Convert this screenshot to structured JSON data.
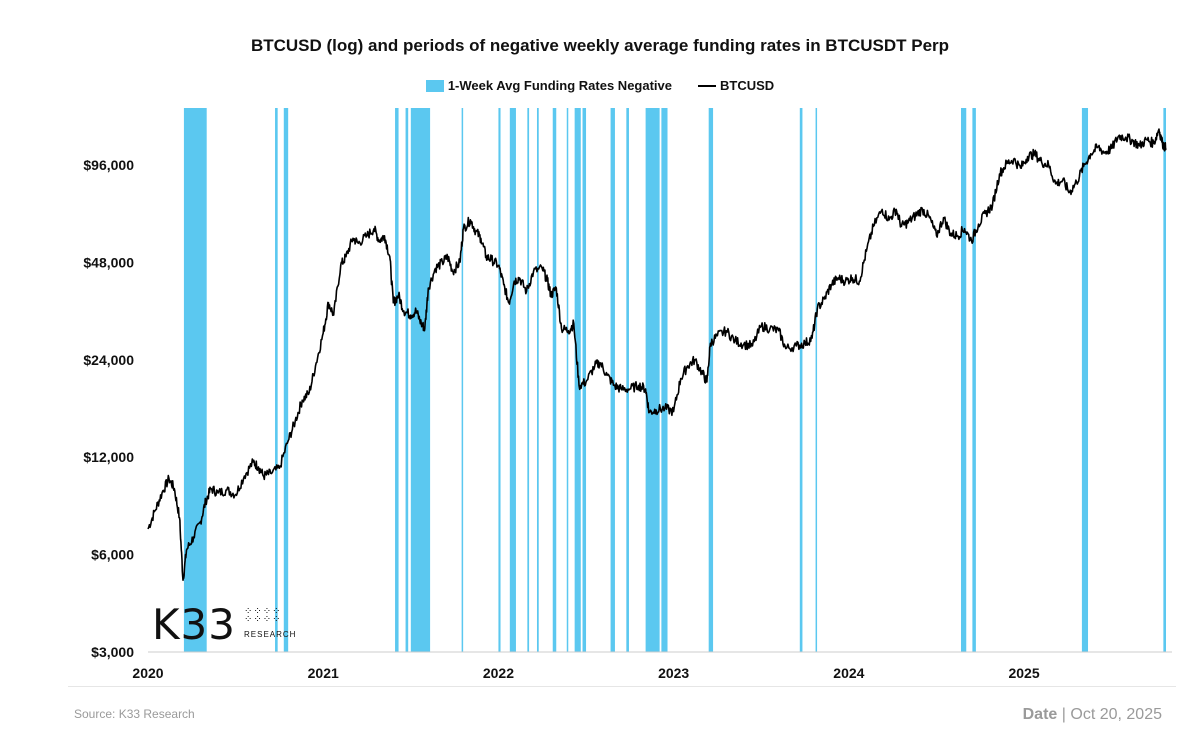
{
  "chart_data": {
    "type": "line",
    "title": "BTCUSD (log) and periods of negative weekly average funding rates in BTCUSDT Perp",
    "legend": [
      "1-Week Avg Funding Rates Negative",
      "BTCUSD"
    ],
    "legend_position": "top-center",
    "yscale": "log",
    "ylim": [
      3000,
      140000
    ],
    "yticks": [
      3000,
      6000,
      12000,
      24000,
      48000,
      96000
    ],
    "ytick_labels": [
      "$3,000",
      "$6,000",
      "$12,000",
      "$24,000",
      "$48,000",
      "$96,000"
    ],
    "xlim": [
      2020.0,
      2025.81
    ],
    "xticks": [
      2020,
      2021,
      2022,
      2023,
      2024,
      2025
    ],
    "xtick_labels": [
      "2020",
      "2021",
      "2022",
      "2023",
      "2024",
      "2025"
    ],
    "xlabel": "",
    "ylabel": "",
    "colors": {
      "bands": "#5bc8f0",
      "line": "#000000"
    },
    "negative_funding_periods": [
      [
        2020.205,
        2020.335
      ],
      [
        2020.725,
        2020.74
      ],
      [
        2020.775,
        2020.8
      ],
      [
        2021.41,
        2021.43
      ],
      [
        2021.47,
        2021.485
      ],
      [
        2021.5,
        2021.61
      ],
      [
        2021.79,
        2021.795
      ],
      [
        2022.0,
        2022.012
      ],
      [
        2022.065,
        2022.1
      ],
      [
        2022.165,
        2022.175
      ],
      [
        2022.22,
        2022.23
      ],
      [
        2022.31,
        2022.33
      ],
      [
        2022.39,
        2022.395
      ],
      [
        2022.435,
        2022.47
      ],
      [
        2022.48,
        2022.5
      ],
      [
        2022.64,
        2022.665
      ],
      [
        2022.73,
        2022.745
      ],
      [
        2022.84,
        2022.92
      ],
      [
        2022.93,
        2022.965
      ],
      [
        2023.2,
        2023.225
      ],
      [
        2023.72,
        2023.735
      ],
      [
        2023.81,
        2023.815
      ],
      [
        2024.64,
        2024.67
      ],
      [
        2024.705,
        2024.725
      ],
      [
        2025.33,
        2025.365
      ],
      [
        2025.795,
        2025.81
      ]
    ],
    "series": [
      {
        "name": "BTCUSD",
        "points": [
          [
            2020.0,
            7200
          ],
          [
            2020.04,
            8200
          ],
          [
            2020.08,
            9300
          ],
          [
            2020.12,
            10300
          ],
          [
            2020.15,
            9600
          ],
          [
            2020.18,
            7800
          ],
          [
            2020.2,
            5000
          ],
          [
            2020.22,
            6200
          ],
          [
            2020.26,
            6800
          ],
          [
            2020.3,
            7600
          ],
          [
            2020.33,
            8800
          ],
          [
            2020.36,
            9600
          ],
          [
            2020.4,
            9300
          ],
          [
            2020.45,
            9500
          ],
          [
            2020.5,
            9200
          ],
          [
            2020.55,
            10500
          ],
          [
            2020.6,
            11600
          ],
          [
            2020.63,
            11200
          ],
          [
            2020.66,
            10500
          ],
          [
            2020.7,
            10700
          ],
          [
            2020.75,
            11100
          ],
          [
            2020.8,
            13500
          ],
          [
            2020.84,
            15500
          ],
          [
            2020.88,
            18000
          ],
          [
            2020.92,
            19000
          ],
          [
            2020.96,
            23500
          ],
          [
            2021.0,
            29000
          ],
          [
            2021.03,
            36000
          ],
          [
            2021.06,
            33000
          ],
          [
            2021.1,
            47000
          ],
          [
            2021.13,
            50000
          ],
          [
            2021.17,
            57000
          ],
          [
            2021.2,
            55000
          ],
          [
            2021.25,
            58000
          ],
          [
            2021.29,
            61000
          ],
          [
            2021.32,
            56000
          ],
          [
            2021.35,
            58000
          ],
          [
            2021.38,
            50000
          ],
          [
            2021.4,
            36000
          ],
          [
            2021.43,
            38000
          ],
          [
            2021.46,
            34000
          ],
          [
            2021.5,
            33000
          ],
          [
            2021.53,
            34000
          ],
          [
            2021.56,
            31000
          ],
          [
            2021.58,
            30000
          ],
          [
            2021.6,
            40000
          ],
          [
            2021.64,
            46000
          ],
          [
            2021.68,
            48000
          ],
          [
            2021.71,
            50000
          ],
          [
            2021.74,
            45000
          ],
          [
            2021.78,
            48000
          ],
          [
            2021.8,
            61000
          ],
          [
            2021.84,
            65000
          ],
          [
            2021.87,
            60000
          ],
          [
            2021.9,
            57000
          ],
          [
            2021.93,
            50000
          ],
          [
            2021.96,
            49000
          ],
          [
            2022.0,
            47000
          ],
          [
            2022.03,
            41000
          ],
          [
            2022.06,
            36000
          ],
          [
            2022.09,
            42000
          ],
          [
            2022.12,
            43000
          ],
          [
            2022.16,
            39000
          ],
          [
            2022.2,
            45000
          ],
          [
            2022.25,
            46000
          ],
          [
            2022.28,
            42000
          ],
          [
            2022.3,
            38000
          ],
          [
            2022.33,
            40000
          ],
          [
            2022.36,
            30000
          ],
          [
            2022.4,
            29500
          ],
          [
            2022.43,
            31000
          ],
          [
            2022.46,
            20000
          ],
          [
            2022.5,
            20500
          ],
          [
            2022.55,
            23000
          ],
          [
            2022.58,
            23500
          ],
          [
            2022.62,
            21500
          ],
          [
            2022.66,
            20000
          ],
          [
            2022.7,
            19500
          ],
          [
            2022.75,
            19500
          ],
          [
            2022.8,
            20000
          ],
          [
            2022.84,
            19500
          ],
          [
            2022.86,
            16500
          ],
          [
            2022.9,
            16800
          ],
          [
            2022.95,
            17000
          ],
          [
            2023.0,
            16600
          ],
          [
            2023.04,
            21000
          ],
          [
            2023.08,
            23000
          ],
          [
            2023.12,
            24000
          ],
          [
            2023.16,
            22000
          ],
          [
            2023.19,
            20500
          ],
          [
            2023.21,
            27000
          ],
          [
            2023.25,
            28500
          ],
          [
            2023.3,
            29500
          ],
          [
            2023.35,
            27500
          ],
          [
            2023.4,
            26800
          ],
          [
            2023.45,
            26500
          ],
          [
            2023.5,
            30500
          ],
          [
            2023.55,
            30000
          ],
          [
            2023.6,
            29500
          ],
          [
            2023.64,
            26000
          ],
          [
            2023.7,
            26500
          ],
          [
            2023.75,
            27000
          ],
          [
            2023.79,
            28000
          ],
          [
            2023.82,
            34500
          ],
          [
            2023.86,
            37000
          ],
          [
            2023.9,
            41000
          ],
          [
            2023.94,
            43000
          ],
          [
            2023.98,
            42000
          ],
          [
            2024.02,
            43000
          ],
          [
            2024.06,
            42000
          ],
          [
            2024.1,
            52000
          ],
          [
            2024.14,
            62000
          ],
          [
            2024.19,
            70000
          ],
          [
            2024.23,
            65000
          ],
          [
            2024.27,
            70000
          ],
          [
            2024.3,
            62000
          ],
          [
            2024.34,
            64000
          ],
          [
            2024.38,
            67000
          ],
          [
            2024.42,
            70000
          ],
          [
            2024.46,
            66000
          ],
          [
            2024.5,
            58000
          ],
          [
            2024.54,
            66000
          ],
          [
            2024.58,
            59000
          ],
          [
            2024.62,
            58000
          ],
          [
            2024.66,
            61000
          ],
          [
            2024.7,
            56000
          ],
          [
            2024.74,
            63000
          ],
          [
            2024.78,
            68000
          ],
          [
            2024.82,
            72000
          ],
          [
            2024.86,
            90000
          ],
          [
            2024.9,
            97000
          ],
          [
            2024.94,
            100000
          ],
          [
            2024.98,
            94000
          ],
          [
            2025.02,
            102000
          ],
          [
            2025.06,
            104000
          ],
          [
            2025.1,
            98000
          ],
          [
            2025.14,
            96000
          ],
          [
            2025.18,
            84000
          ],
          [
            2025.22,
            86000
          ],
          [
            2025.26,
            79000
          ],
          [
            2025.3,
            85000
          ],
          [
            2025.34,
            95000
          ],
          [
            2025.38,
            104000
          ],
          [
            2025.42,
            109000
          ],
          [
            2025.46,
            105000
          ],
          [
            2025.5,
            108000
          ],
          [
            2025.54,
            118000
          ],
          [
            2025.58,
            117000
          ],
          [
            2025.62,
            114000
          ],
          [
            2025.66,
            110000
          ],
          [
            2025.7,
            115000
          ],
          [
            2025.74,
            112000
          ],
          [
            2025.77,
            124000
          ],
          [
            2025.79,
            112000
          ],
          [
            2025.81,
            108000
          ]
        ]
      }
    ]
  },
  "logo": {
    "text": "K33",
    "subtitle": "RESEARCH"
  },
  "footer": {
    "source": "Source:  K33 Research",
    "date_label": "Date",
    "date_separator": "|",
    "date_value": "Oct 20, 2025"
  }
}
